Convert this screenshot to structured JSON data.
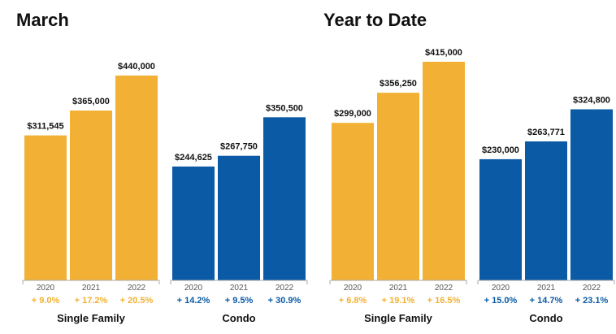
{
  "colors": {
    "single_family": "#F2B134",
    "condo": "#0B5AA6",
    "baseline": "#aaaaaa",
    "divider": "#cccccc"
  },
  "chart_data": [
    {
      "type": "bar",
      "title": "March",
      "ylim": [
        0,
        440000
      ],
      "groups": [
        {
          "name": "Single Family",
          "color_key": "single_family",
          "bars": [
            {
              "year": "2020",
              "value": 311545,
              "value_label": "$311,545",
              "change": "+ 9.0%"
            },
            {
              "year": "2021",
              "value": 365000,
              "value_label": "$365,000",
              "change": "+ 17.2%"
            },
            {
              "year": "2022",
              "value": 440000,
              "value_label": "$440,000",
              "change": "+ 20.5%"
            }
          ]
        },
        {
          "name": "Condo",
          "color_key": "condo",
          "bars": [
            {
              "year": "2020",
              "value": 244625,
              "value_label": "$244,625",
              "change": "+ 14.2%"
            },
            {
              "year": "2021",
              "value": 267750,
              "value_label": "$267,750",
              "change": "+ 9.5%"
            },
            {
              "year": "2022",
              "value": 350500,
              "value_label": "$350,500",
              "change": "+ 30.9%"
            }
          ]
        }
      ]
    },
    {
      "type": "bar",
      "title": "Year to Date",
      "ylim": [
        0,
        415000
      ],
      "groups": [
        {
          "name": "Single Family",
          "color_key": "single_family",
          "bars": [
            {
              "year": "2020",
              "value": 299000,
              "value_label": "$299,000",
              "change": "+ 6.8%"
            },
            {
              "year": "2021",
              "value": 356250,
              "value_label": "$356,250",
              "change": "+ 19.1%"
            },
            {
              "year": "2022",
              "value": 415000,
              "value_label": "$415,000",
              "change": "+ 16.5%"
            }
          ]
        },
        {
          "name": "Condo",
          "color_key": "condo",
          "bars": [
            {
              "year": "2020",
              "value": 230000,
              "value_label": "$230,000",
              "change": "+ 15.0%"
            },
            {
              "year": "2021",
              "value": 263771,
              "value_label": "$263,771",
              "change": "+ 14.7%"
            },
            {
              "year": "2022",
              "value": 324800,
              "value_label": "$324,800",
              "change": "+ 23.1%"
            }
          ]
        }
      ]
    }
  ]
}
